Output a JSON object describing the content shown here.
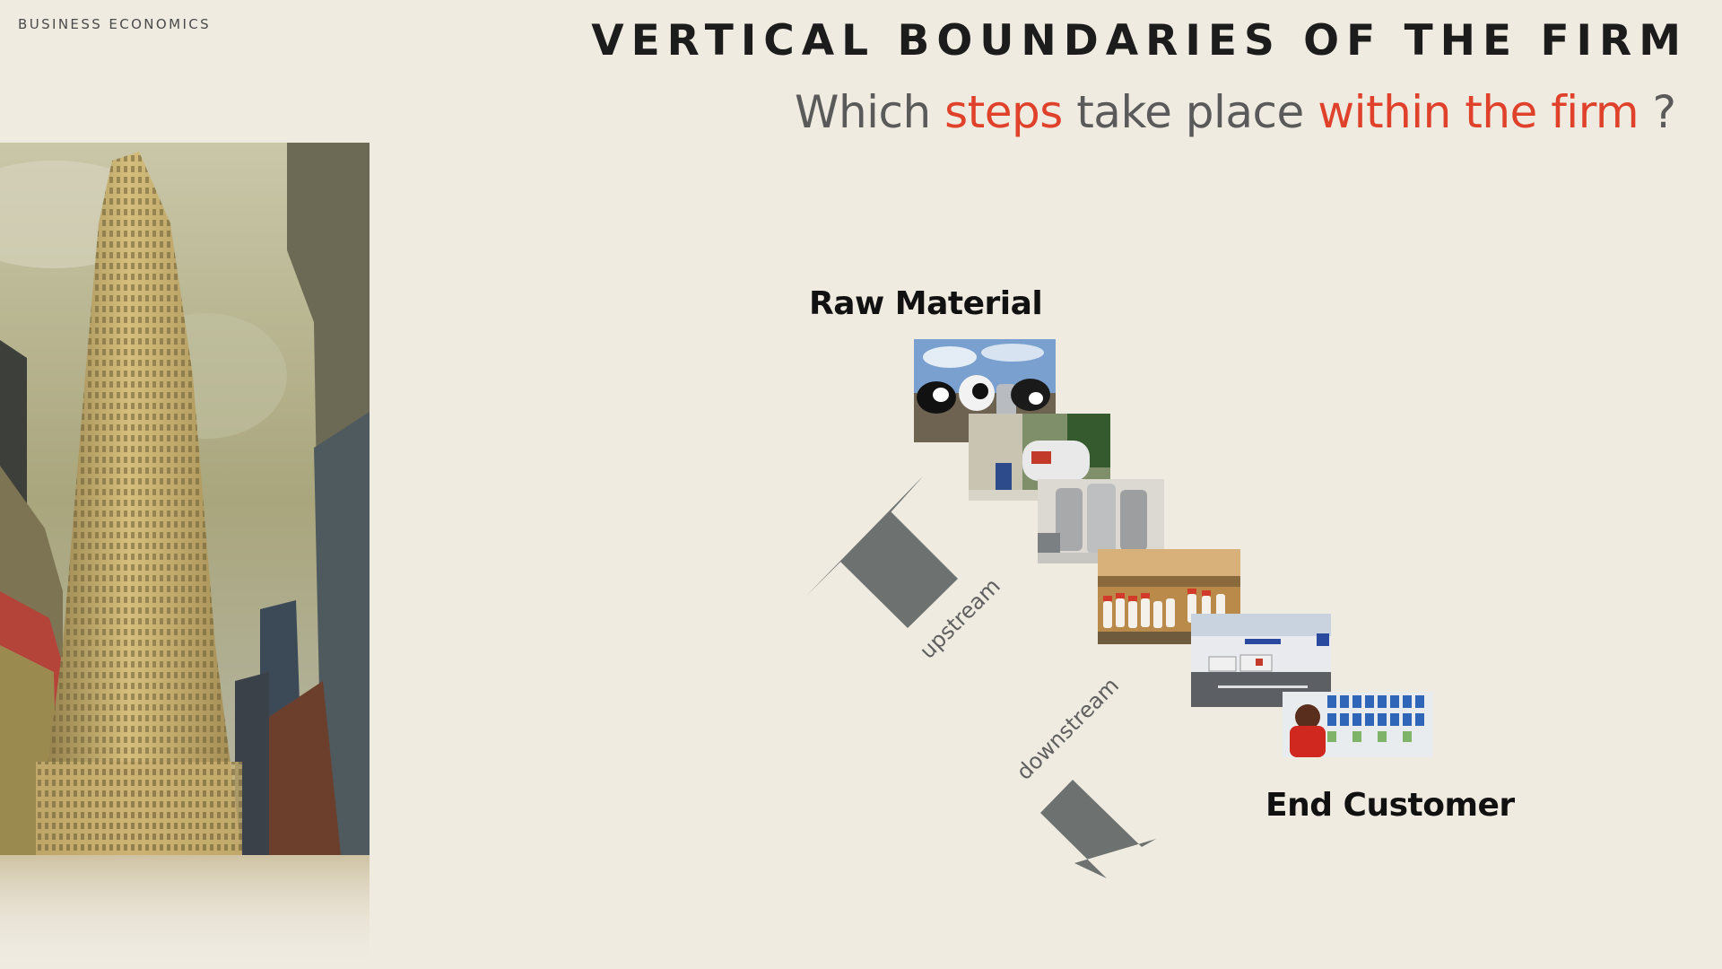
{
  "header": {
    "section": "BUSINESS ECONOMICS",
    "title": "VERTICAL BOUNDARIES OF THE FIRM"
  },
  "subtitle": {
    "part1": "Which ",
    "highlight1": "steps",
    "part2": " take place ",
    "highlight2": "within the firm",
    "part3": " ?"
  },
  "diagram": {
    "start_label": "Raw Material",
    "end_label": "End Customer",
    "upstream_label": "upstream",
    "downstream_label": "downstream",
    "steps": [
      "dairy-cows",
      "milk-collection",
      "processing-tanks",
      "bottling-line",
      "distribution-warehouse",
      "supermarket"
    ]
  },
  "colors": {
    "background": "#efebe1",
    "accent": "#e0412b",
    "arrow": "#6d7270"
  }
}
